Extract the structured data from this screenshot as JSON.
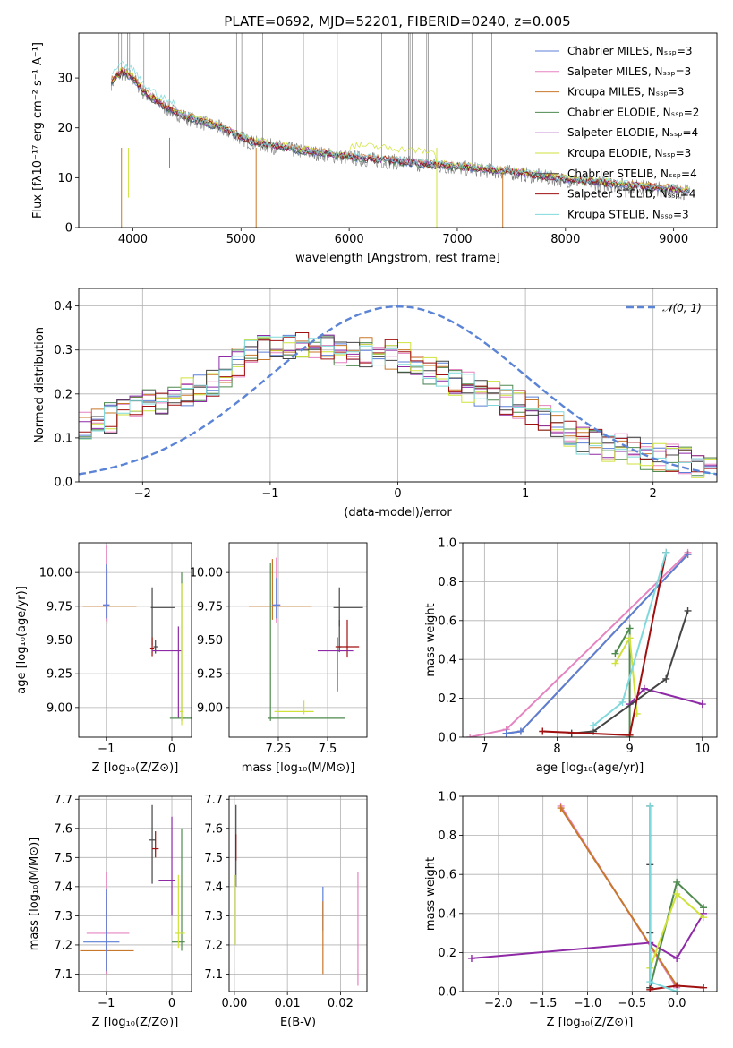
{
  "figure": {
    "title": "PLATE=0692, MJD=52201, FIBERID=0240, z=0.005"
  },
  "colors": {
    "chabrier_miles": "#5b7fd6",
    "salpeter_miles": "#e584c1",
    "kroupa_miles": "#c8782a",
    "chabrier_elodie": "#4f8a4f",
    "salpeter_elodie": "#8e2aa6",
    "kroupa_elodie": "#cfe23a",
    "chabrier_stelib": "#444444",
    "salpeter_stelib": "#a01010",
    "kroupa_stelib": "#7fd9dc",
    "data": "#808080",
    "normal": "#5b84d6"
  },
  "chart_data": [
    {
      "type": "line",
      "title": "PLATE=0692, MJD=52201, FIBERID=0240, z=0.005",
      "xlabel": "wavelength [Angstrom, rest frame]",
      "ylabel": "Flux [fλ10⁻¹⁷ erg cm⁻² s⁻¹ A⁻¹]",
      "xlim": [
        3500,
        9400
      ],
      "ylim": [
        0,
        39
      ],
      "xticks": [
        4000,
        5000,
        6000,
        7000,
        8000,
        9000
      ],
      "yticks": [
        0,
        10,
        20,
        30
      ],
      "grid": false,
      "legend": "upper-right",
      "legend_entries": [
        "Chabrier MILES, Nₛₛₚ=3",
        "Salpeter MILES, Nₛₛₚ=3",
        "Kroupa MILES, Nₛₛₚ=3",
        "Chabrier ELODIE, Nₛₛₚ=2",
        "Salpeter ELODIE, Nₛₛₚ=4",
        "Kroupa ELODIE, Nₛₛₚ=3",
        "Chabrier STELIB, Nₛₛₚ=4",
        "Salpeter STELIB, Nₛₛₚ=4",
        "Kroupa STELIB, Nₛₛₚ=3"
      ],
      "legend_colors": [
        "chabrier_miles",
        "salpeter_miles",
        "kroupa_miles",
        "chabrier_elodie",
        "salpeter_elodie",
        "kroupa_elodie",
        "chabrier_stelib",
        "salpeter_stelib",
        "kroupa_stelib"
      ],
      "continuum": {
        "x": [
          3800,
          3900,
          4000,
          4100,
          4300,
          4500,
          4800,
          5100,
          5500,
          6000,
          6500,
          7000,
          7500,
          8000,
          8500,
          9000,
          9150
        ],
        "y": [
          29,
          31,
          30,
          27,
          24,
          22,
          20,
          17,
          15.5,
          14,
          13,
          12,
          11,
          9.5,
          8.5,
          7.5,
          7
        ]
      },
      "emission_lines": [
        3870,
        3895,
        3950,
        3970,
        4102,
        4340,
        4861,
        4959,
        5007,
        5200,
        5577,
        5890,
        6300,
        6548,
        6563,
        6583,
        6717,
        6731,
        7135,
        7320
      ],
      "absorption_dips": [
        3933,
        3968,
        5140,
        7420
      ]
    },
    {
      "type": "line",
      "xlabel": "(data-model)/error",
      "ylabel": "Normed distribution",
      "xlim": [
        -2.5,
        2.5
      ],
      "ylim": [
        0,
        0.44
      ],
      "xticks": [
        -2,
        -1,
        0,
        1,
        2
      ],
      "yticks": [
        0.0,
        0.1,
        0.2,
        0.3,
        0.4
      ],
      "grid": true,
      "legend": "upper-right",
      "legend_entry": "𝒩(0, 1)",
      "normal_curve": {
        "mean": 0,
        "sigma": 1
      },
      "histogram_envelope": {
        "x": [
          -2.5,
          -2,
          -1.5,
          -1,
          -0.5,
          0,
          0.5,
          1,
          1.5,
          2,
          2.5
        ],
        "y": [
          0.12,
          0.17,
          0.22,
          0.32,
          0.3,
          0.29,
          0.22,
          0.17,
          0.09,
          0.06,
          0.03
        ]
      }
    },
    {
      "type": "scatter",
      "xlabel": "Z [log₁₀(Z/Z⊙)]",
      "ylabel": "age  [log₁₀(age/yr)]",
      "xlim": [
        -1.42,
        0.3
      ],
      "ylim": [
        8.78,
        10.22
      ],
      "xticks": [
        -1,
        0
      ],
      "yticks": [
        9.0,
        9.25,
        9.5,
        9.75,
        10.0
      ],
      "grid": true,
      "points": [
        {
          "s": "kroupa_miles",
          "x": -0.99,
          "y": 9.75,
          "xerr": [
            0.37,
            0.45
          ],
          "yerr": [
            0.13,
            0.28
          ]
        },
        {
          "s": "salpeter_miles",
          "x": -1.0,
          "y": 9.76,
          "xerr": [
            0.05,
            0.05
          ],
          "yerr": [
            0.12,
            0.44
          ]
        },
        {
          "s": "chabrier_miles",
          "x": -1.0,
          "y": 9.76,
          "xerr": [
            0.05,
            0.05
          ],
          "yerr": [
            0.1,
            0.3
          ]
        },
        {
          "s": "chabrier_stelib",
          "x": -0.3,
          "y": 9.74,
          "xerr": [
            0.02,
            0.34
          ],
          "yerr": [
            0.28,
            0.15
          ]
        },
        {
          "s": "chabrier_stelib",
          "x": -0.25,
          "y": 9.45,
          "xerr": [
            0.03,
            0.03
          ],
          "yerr": [
            0.05,
            0.05
          ]
        },
        {
          "s": "salpeter_stelib",
          "x": -0.3,
          "y": 9.44,
          "xerr": [
            0.03,
            0.03
          ],
          "yerr": [
            0.06,
            0.08
          ]
        },
        {
          "s": "salpeter_elodie",
          "x": 0.1,
          "y": 9.42,
          "xerr": [
            0.4,
            0.05
          ],
          "yerr": [
            0.5,
            0.18
          ]
        },
        {
          "s": "chabrier_elodie",
          "x": 0.15,
          "y": 8.92,
          "xerr": [
            0.18,
            0.2
          ],
          "yerr": [
            0.02,
            1.08
          ]
        },
        {
          "s": "kroupa_elodie",
          "x": 0.15,
          "y": 8.97,
          "xerr": [
            0.03,
            0.03
          ],
          "yerr": [
            0.1,
            0.95
          ]
        }
      ]
    },
    {
      "type": "scatter",
      "xlabel": "mass [log₁₀(M/M⊙)]",
      "ylabel": "",
      "xlim": [
        7.0,
        7.7
      ],
      "ylim": [
        8.78,
        10.22
      ],
      "xticks": [
        7.25,
        7.5
      ],
      "yticks": [
        9.0,
        9.25,
        9.5,
        9.75,
        10.0
      ],
      "grid": true,
      "points": [
        {
          "s": "kroupa_miles",
          "x": 7.22,
          "y": 9.75,
          "xerr": [
            0.12,
            0.2
          ],
          "yerr": [
            0.1,
            0.35
          ]
        },
        {
          "s": "salpeter_miles",
          "x": 7.24,
          "y": 9.76,
          "xerr": [
            0.02,
            0.02
          ],
          "yerr": [
            0.13,
            0.35
          ]
        },
        {
          "s": "chabrier_miles",
          "x": 7.24,
          "y": 9.76,
          "xerr": [
            0.02,
            0.02
          ],
          "yerr": [
            0.1,
            0.2
          ]
        },
        {
          "s": "chabrier_stelib",
          "x": 7.56,
          "y": 9.74,
          "xerr": [
            0.03,
            0.12
          ],
          "yerr": [
            0.14,
            0.15
          ]
        },
        {
          "s": "chabrier_stelib",
          "x": 7.56,
          "y": 9.45,
          "xerr": [
            0.01,
            0.01
          ],
          "yerr": [
            0.04,
            0.2
          ]
        },
        {
          "s": "salpeter_stelib",
          "x": 7.6,
          "y": 9.45,
          "xerr": [
            0.06,
            0.06
          ],
          "yerr": [
            0.08,
            0.2
          ]
        },
        {
          "s": "salpeter_elodie",
          "x": 7.55,
          "y": 9.42,
          "xerr": [
            0.1,
            0.08
          ],
          "yerr": [
            0.3,
            0.1
          ]
        },
        {
          "s": "chabrier_elodie",
          "x": 7.21,
          "y": 8.92,
          "xerr": [
            0.01,
            0.38
          ],
          "yerr": [
            0.02,
            1.15
          ]
        },
        {
          "s": "kroupa_elodie",
          "x": 7.38,
          "y": 8.97,
          "xerr": [
            0.15,
            0.05
          ],
          "yerr": [
            0.02,
            0.08
          ]
        }
      ]
    },
    {
      "type": "line",
      "xlabel": "age  [log₁₀(age/yr)]",
      "ylabel": "mass weight",
      "xlim": [
        6.7,
        10.2
      ],
      "ylim": [
        0.0,
        1.0
      ],
      "xticks": [
        7,
        8,
        9,
        10
      ],
      "yticks": [
        0.0,
        0.2,
        0.4,
        0.6,
        0.8,
        1.0
      ],
      "grid": true,
      "series": [
        {
          "s": "salpeter_miles",
          "x": [
            6.8,
            7.3,
            9.8
          ],
          "y": [
            0.0,
            0.04,
            0.95
          ]
        },
        {
          "s": "kroupa_miles",
          "x": [
            7.3,
            7.5,
            9.8
          ],
          "y": [
            0.02,
            0.03,
            0.94
          ]
        },
        {
          "s": "chabrier_miles",
          "x": [
            7.3,
            7.5,
            9.8
          ],
          "y": [
            0.02,
            0.03,
            0.94
          ]
        },
        {
          "s": "chabrier_elodie",
          "x": [
            8.8,
            9.0,
            9.0
          ],
          "y": [
            0.43,
            0.56,
            0.0
          ]
        },
        {
          "s": "salpeter_elodie",
          "x": [
            9.0,
            9.2,
            10.0
          ],
          "y": [
            0.17,
            0.25,
            0.17
          ]
        },
        {
          "s": "kroupa_elodie",
          "x": [
            8.8,
            9.0,
            9.1
          ],
          "y": [
            0.38,
            0.51,
            0.12
          ]
        },
        {
          "s": "chabrier_stelib",
          "x": [
            8.2,
            8.5,
            9.5,
            9.8
          ],
          "y": [
            0.02,
            0.03,
            0.3,
            0.65
          ]
        },
        {
          "s": "salpeter_stelib",
          "x": [
            7.8,
            9.0,
            9.5
          ],
          "y": [
            0.03,
            0.01,
            0.95
          ]
        },
        {
          "s": "kroupa_stelib",
          "x": [
            8.5,
            8.9,
            9.5
          ],
          "y": [
            0.06,
            0.18,
            0.95
          ]
        }
      ]
    },
    {
      "type": "scatter",
      "xlabel": "Z [log₁₀(Z/Z⊙)]",
      "ylabel": "mass [log₁₀(M/M⊙)]",
      "xlim": [
        -1.42,
        0.3
      ],
      "ylim": [
        7.04,
        7.71
      ],
      "xticks": [
        -1,
        0
      ],
      "yticks": [
        7.1,
        7.2,
        7.3,
        7.4,
        7.5,
        7.6,
        7.7
      ],
      "grid": true,
      "points": [
        {
          "s": "kroupa_miles",
          "x": -1.0,
          "y": 7.18,
          "xerr": [
            0.4,
            0.42
          ],
          "yerr": [
            0.08,
            0.18
          ]
        },
        {
          "s": "salpeter_miles",
          "x": -1.0,
          "y": 7.24,
          "xerr": [
            0.3,
            0.35
          ],
          "yerr": [
            0.14,
            0.21
          ]
        },
        {
          "s": "chabrier_miles",
          "x": -1.0,
          "y": 7.21,
          "xerr": [
            0.35,
            0.2
          ],
          "yerr": [
            0.1,
            0.18
          ]
        },
        {
          "s": "chabrier_stelib",
          "x": -0.3,
          "y": 7.56,
          "xerr": [
            0.05,
            0.05
          ],
          "yerr": [
            0.15,
            0.12
          ]
        },
        {
          "s": "salpeter_stelib",
          "x": -0.25,
          "y": 7.53,
          "xerr": [
            0.05,
            0.05
          ],
          "yerr": [
            0.03,
            0.06
          ]
        },
        {
          "s": "salpeter_elodie",
          "x": 0.0,
          "y": 7.42,
          "xerr": [
            0.2,
            0.05
          ],
          "yerr": [
            0.12,
            0.22
          ]
        },
        {
          "s": "chabrier_elodie",
          "x": 0.15,
          "y": 7.21,
          "xerr": [
            0.15,
            0.05
          ],
          "yerr": [
            0.03,
            0.39
          ]
        },
        {
          "s": "kroupa_elodie",
          "x": 0.1,
          "y": 7.24,
          "xerr": [
            0.05,
            0.1
          ],
          "yerr": [
            0.05,
            0.2
          ]
        }
      ]
    },
    {
      "type": "scatter",
      "xlabel": "E(B-V)",
      "ylabel": "",
      "xlim": [
        -0.001,
        0.025
      ],
      "ylim": [
        7.04,
        7.71
      ],
      "xticks": [
        0.0,
        0.01,
        0.02
      ],
      "yticks": [
        7.1,
        7.2,
        7.3,
        7.4,
        7.5,
        7.6,
        7.7
      ],
      "grid": true,
      "points": [
        {
          "s": "chabrier_stelib",
          "x": 0.0003,
          "y": 7.55,
          "xerr": [
            0,
            0
          ],
          "yerr": [
            0.15,
            0.13
          ]
        },
        {
          "s": "salpeter_stelib",
          "x": 0.0003,
          "y": 7.53,
          "xerr": [
            0,
            0
          ],
          "yerr": [
            0.04,
            0.05
          ]
        },
        {
          "s": "kroupa_elodie",
          "x": 0.0002,
          "y": 7.24,
          "xerr": [
            0,
            0
          ],
          "yerr": [
            0.04,
            0.2
          ]
        },
        {
          "s": "chabrier_miles",
          "x": 0.0167,
          "y": 7.35,
          "xerr": [
            0,
            0
          ],
          "yerr": [
            0.1,
            0.05
          ]
        },
        {
          "s": "kroupa_miles",
          "x": 0.0167,
          "y": 7.2,
          "xerr": [
            0,
            0
          ],
          "yerr": [
            0.1,
            0.15
          ]
        },
        {
          "s": "salpeter_miles",
          "x": 0.0233,
          "y": 7.24,
          "xerr": [
            0,
            0
          ],
          "yerr": [
            0.18,
            0.21
          ]
        }
      ]
    },
    {
      "type": "line",
      "xlabel": "Z [log₁₀(Z/Z⊙)]",
      "ylabel": "mass weight",
      "xlim": [
        -2.4,
        0.45
      ],
      "ylim": [
        0.0,
        1.0
      ],
      "xticks": [
        -2.0,
        -1.5,
        -1.0,
        -0.5,
        0.0
      ],
      "yticks": [
        0.0,
        0.2,
        0.4,
        0.6,
        0.8,
        1.0
      ],
      "grid": true,
      "series": [
        {
          "s": "salpeter_miles",
          "x": [
            -1.3,
            0.0
          ],
          "y": [
            0.95,
            0.02
          ]
        },
        {
          "s": "kroupa_miles",
          "x": [
            -1.3,
            0.0
          ],
          "y": [
            0.94,
            0.03
          ]
        },
        {
          "s": "chabrier_elodie",
          "x": [
            -0.3,
            0.0,
            0.3
          ],
          "y": [
            0.02,
            0.56,
            0.43
          ]
        },
        {
          "s": "salpeter_elodie",
          "x": [
            -2.3,
            -0.3,
            0.0,
            0.3
          ],
          "y": [
            0.17,
            0.25,
            0.17,
            0.4
          ]
        },
        {
          "s": "kroupa_elodie",
          "x": [
            -0.3,
            0.0,
            0.3
          ],
          "y": [
            0.12,
            0.5,
            0.38
          ]
        },
        {
          "s": "chabrier_stelib",
          "x": [
            -0.3,
            -0.3,
            -0.3,
            -0.3
          ],
          "y": [
            0.02,
            0.3,
            0.65,
            0.95
          ]
        },
        {
          "s": "salpeter_stelib",
          "x": [
            -0.3,
            0.0,
            0.3
          ],
          "y": [
            0.01,
            0.03,
            0.02
          ]
        },
        {
          "s": "kroupa_stelib",
          "x": [
            -0.3,
            -0.3,
            0.0
          ],
          "y": [
            0.95,
            0.05,
            0.0
          ]
        }
      ]
    }
  ]
}
